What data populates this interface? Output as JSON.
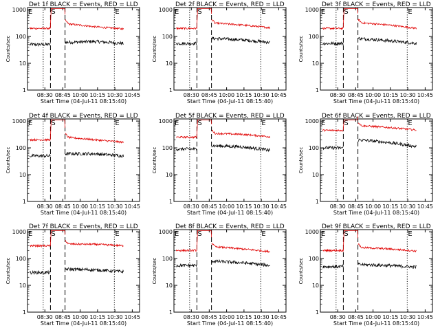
{
  "figure": {
    "y_axis_label": "Counts/sec",
    "x_axis_label": "Start Time (04-Jul-11 08:15:40)",
    "x_tick_labels": [
      "08:30",
      "08:45",
      "10:00",
      "10:15",
      "10:30",
      "10:45"
    ],
    "y_tick_labels": [
      "1",
      "10",
      "100",
      "1000"
    ],
    "colors": {
      "events": "#000000",
      "lld": "#e00000",
      "axes": "#000000"
    }
  },
  "chart_data": [
    {
      "type": "line",
      "title": "Det 1f BLACK = Events, RED = LLD",
      "markers": [
        "E",
        "S",
        "E"
      ],
      "ylim": [
        1,
        1200
      ],
      "yscale": "log",
      "series": [
        {
          "name": "Events",
          "level_before": 50,
          "level_after": [
            60,
            65,
            55
          ]
        },
        {
          "name": "LLD",
          "level_before": 200,
          "level_after": [
            300,
            230,
            190
          ]
        }
      ]
    },
    {
      "type": "line",
      "title": "Det 2f BLACK = Events, RED = LLD",
      "markers": [
        "E",
        "S",
        "E"
      ],
      "ylim": [
        1,
        1200
      ],
      "yscale": "log",
      "series": [
        {
          "name": "Events",
          "level_before": 55,
          "level_after": [
            85,
            75,
            60
          ]
        },
        {
          "name": "LLD",
          "level_before": 200,
          "level_after": [
            320,
            270,
            210
          ]
        }
      ]
    },
    {
      "type": "line",
      "title": "Det 3f BLACK = Events, RED = LLD",
      "markers": [
        "E",
        "S",
        "E"
      ],
      "ylim": [
        1,
        1200
      ],
      "yscale": "log",
      "series": [
        {
          "name": "Events",
          "level_before": 55,
          "level_after": [
            85,
            70,
            55
          ]
        },
        {
          "name": "LLD",
          "level_before": 200,
          "level_after": [
            330,
            270,
            200
          ]
        }
      ]
    },
    {
      "type": "line",
      "title": "Det 4f BLACK = Events, RED = LLD",
      "markers": [
        "E",
        "S",
        "E"
      ],
      "ylim": [
        1,
        1200
      ],
      "yscale": "log",
      "series": [
        {
          "name": "Events",
          "level_before": 50,
          "level_after": [
            60,
            60,
            50
          ]
        },
        {
          "name": "LLD",
          "level_before": 200,
          "level_after": [
            250,
            200,
            160
          ]
        }
      ]
    },
    {
      "type": "line",
      "title": "Det 5f BLACK = Events, RED = LLD",
      "markers": [
        "E",
        "S",
        "E"
      ],
      "ylim": [
        1,
        1200
      ],
      "yscale": "log",
      "series": [
        {
          "name": "Events",
          "level_before": 90,
          "level_after": [
            120,
            110,
            80
          ]
        },
        {
          "name": "LLD",
          "level_before": 250,
          "level_after": [
            350,
            320,
            260
          ]
        }
      ]
    },
    {
      "type": "line",
      "title": "Det 6f BLACK = Events, RED = LLD",
      "markers": [
        "E",
        "S",
        "E"
      ],
      "ylim": [
        1,
        1200
      ],
      "yscale": "log",
      "series": [
        {
          "name": "Events",
          "level_before": 100,
          "level_after": [
            200,
            160,
            110
          ]
        },
        {
          "name": "LLD",
          "level_before": 450,
          "level_after": [
            680,
            580,
            460
          ]
        }
      ]
    },
    {
      "type": "line",
      "title": "Det 7f BLACK = Events, RED = LLD",
      "markers": [
        "E",
        "S",
        "E"
      ],
      "ylim": [
        1,
        1200
      ],
      "yscale": "log",
      "series": [
        {
          "name": "Events",
          "level_before": 30,
          "level_after": [
            40,
            38,
            32
          ]
        },
        {
          "name": "LLD",
          "level_before": 300,
          "level_after": [
            350,
            340,
            300
          ]
        }
      ]
    },
    {
      "type": "line",
      "title": "Det 8f BLACK = Events, RED = LLD",
      "markers": [
        "E",
        "S",
        "E"
      ],
      "ylim": [
        1,
        1200
      ],
      "yscale": "log",
      "series": [
        {
          "name": "Events",
          "level_before": 55,
          "level_after": [
            80,
            70,
            55
          ]
        },
        {
          "name": "LLD",
          "level_before": 200,
          "level_after": [
            280,
            230,
            180
          ]
        }
      ]
    },
    {
      "type": "line",
      "title": "Det 9f BLACK = Events, RED = LLD",
      "markers": [
        "E",
        "S",
        "E"
      ],
      "ylim": [
        1,
        1200
      ],
      "yscale": "log",
      "series": [
        {
          "name": "Events",
          "level_before": 50,
          "level_after": [
            60,
            55,
            48
          ]
        },
        {
          "name": "LLD",
          "level_before": 200,
          "level_after": [
            260,
            230,
            190
          ]
        }
      ]
    }
  ]
}
